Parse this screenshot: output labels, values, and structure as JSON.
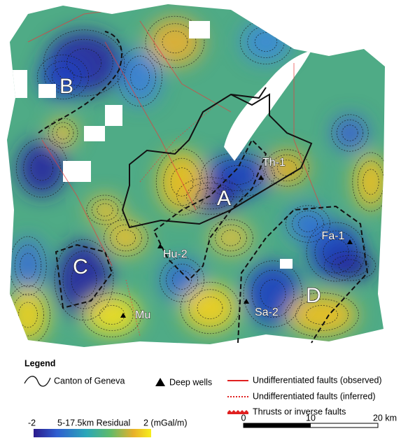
{
  "map": {
    "zone_labels": [
      "A",
      "B",
      "C",
      "D"
    ],
    "wells": [
      "Th-1",
      "Hu-2",
      "Mu",
      "Sa-2",
      "Fa-1"
    ]
  },
  "legend": {
    "title": "Legend",
    "canton": "Canton of Geneva",
    "wells": "Deep wells",
    "faults_observed": "Undifferentiated faults (observed)",
    "faults_inferred": "Undifferentiated faults (inferred)",
    "thrusts": "Thrusts or inverse faults"
  },
  "colorbar": {
    "min_label": "-2",
    "title": "5-17.5km Residual",
    "max_label": "2 (mGal/m)"
  },
  "scale_bar": {
    "labels": [
      "0",
      "10",
      "20 km"
    ]
  }
}
